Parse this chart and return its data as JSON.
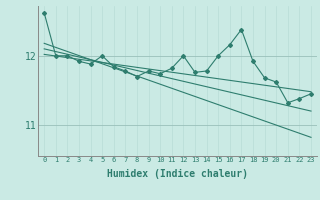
{
  "xlabel": "Humidex (Indice chaleur)",
  "background_color": "#caeae4",
  "grid_color_v": "#b8ddd7",
  "grid_color_h": "#9abfba",
  "line_color": "#2e7d6e",
  "xlim": [
    -0.5,
    23.5
  ],
  "ylim": [
    10.55,
    12.72
  ],
  "yticks": [
    11,
    12
  ],
  "xticks": [
    0,
    1,
    2,
    3,
    4,
    5,
    6,
    7,
    8,
    9,
    10,
    11,
    12,
    13,
    14,
    15,
    16,
    17,
    18,
    19,
    20,
    21,
    22,
    23
  ],
  "data_x": [
    0,
    1,
    2,
    3,
    4,
    5,
    6,
    7,
    8,
    9,
    10,
    11,
    12,
    13,
    14,
    15,
    16,
    17,
    18,
    19,
    20,
    21,
    22,
    23
  ],
  "data_y": [
    12.62,
    12.0,
    12.0,
    11.92,
    11.88,
    12.0,
    11.84,
    11.78,
    11.7,
    11.78,
    11.74,
    11.82,
    12.0,
    11.76,
    11.78,
    12.0,
    12.16,
    12.38,
    11.92,
    11.68,
    11.62,
    11.32,
    11.38,
    11.45
  ],
  "trend1_x": [
    0,
    23
  ],
  "trend1_y": [
    12.1,
    11.2
  ],
  "trend2_x": [
    0,
    23
  ],
  "trend2_y": [
    12.18,
    10.82
  ],
  "trend3_x": [
    0,
    23
  ],
  "trend3_y": [
    12.02,
    11.48
  ],
  "marker_style": "D",
  "marker_size": 2.0,
  "line_width": 0.8
}
